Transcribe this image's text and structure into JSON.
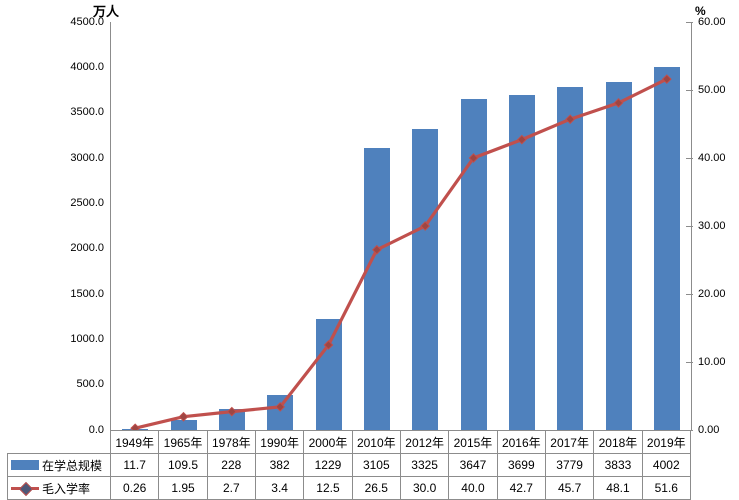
{
  "chart_data": {
    "type": "bar+line",
    "categories": [
      "1949年",
      "1965年",
      "1978年",
      "1990年",
      "2000年",
      "2010年",
      "2012年",
      "2015年",
      "2016年",
      "2017年",
      "2018年",
      "2019年"
    ],
    "series": [
      {
        "name": "在学总规模",
        "type": "bar",
        "axis": "left",
        "values": [
          11.7,
          109.5,
          228,
          382,
          1229,
          3105,
          3325,
          3647,
          3699,
          3779,
          3833,
          4002
        ],
        "labels": [
          "11.7",
          "109.5",
          "228",
          "382",
          "1229",
          "3105",
          "3325",
          "3647",
          "3699",
          "3779",
          "3833",
          "4002"
        ]
      },
      {
        "name": "毛入学率",
        "type": "line",
        "axis": "right",
        "values": [
          0.26,
          1.95,
          2.7,
          3.4,
          12.5,
          26.5,
          30.0,
          40.0,
          42.7,
          45.7,
          48.1,
          51.6
        ],
        "labels": [
          "0.26",
          "1.95",
          "2.7",
          "3.4",
          "12.5",
          "26.5",
          "30.0",
          "40.0",
          "42.7",
          "45.7",
          "48.1",
          "51.6"
        ]
      }
    ],
    "left_axis": {
      "title": "万人",
      "min": 0,
      "max": 4500,
      "ticks": [
        "4500.0",
        "4000.0",
        "3500.0",
        "3000.0",
        "2500.0",
        "2000.0",
        "1500.0",
        "1000.0",
        "500.0",
        "0.0"
      ]
    },
    "right_axis": {
      "title": "%",
      "min": 0,
      "max": 60,
      "ticks": [
        "60.00",
        "50.00",
        "40.00",
        "30.00",
        "20.00",
        "10.00",
        "0.00"
      ]
    },
    "grid": "off",
    "legend_position": "table-left-column",
    "colors": {
      "bar": "#4F81BD",
      "line": "#C0504D",
      "marker_fill": "#9E4643",
      "legend_marker_fill": "#4D5878",
      "axis_line": "#8C8C8C",
      "table_border": "#8C8C8C"
    }
  }
}
